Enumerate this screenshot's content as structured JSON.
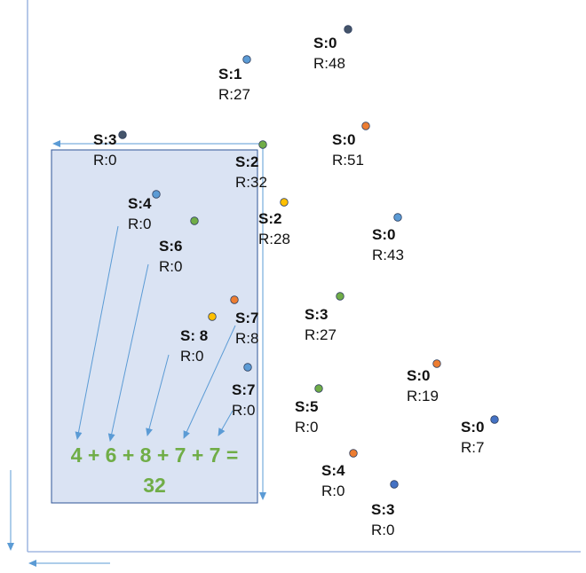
{
  "points": [
    {
      "s": "S:0",
      "r": "R:48",
      "color": "#44546a"
    },
    {
      "s": "S:1",
      "r": "R:27",
      "color": "#5b9bd5"
    },
    {
      "s": "S:3",
      "r": "R:0",
      "color": "#44546a"
    },
    {
      "s": "S:2",
      "r": "R:32",
      "color": "#70ad47"
    },
    {
      "s": "S:0",
      "r": "R:51",
      "color": "#ed7d31"
    },
    {
      "s": "S:4",
      "r": "R:0",
      "color": "#5b9bd5"
    },
    {
      "s": "S:2",
      "r": "R:28",
      "color": "#ffc000"
    },
    {
      "s": "S:6",
      "r": "R:0",
      "color": "#70ad47"
    },
    {
      "s": "S:0",
      "r": "R:43",
      "color": "#5b9bd5"
    },
    {
      "s": "S:3",
      "r": "R:27",
      "color": "#70ad47"
    },
    {
      "s": "S:7",
      "r": "R:8",
      "color": "#ed7d31"
    },
    {
      "s": "S: 8",
      "r": "R:0",
      "color": "#ffc000"
    },
    {
      "s": "S:7",
      "r": "R:0",
      "color": "#5b9bd5"
    },
    {
      "s": "S:0",
      "r": "R:19",
      "color": "#ed7d31"
    },
    {
      "s": "S:5",
      "r": "R:0",
      "color": "#70ad47"
    },
    {
      "s": "S:0",
      "r": "R:7",
      "color": "#4472c4"
    },
    {
      "s": "S:4",
      "r": "R:0",
      "color": "#ed7d31"
    },
    {
      "s": "S:3",
      "r": "R:0",
      "color": "#4472c4"
    }
  ],
  "sum": {
    "line1": "4 + 6 + 8 + 7 + 7 =",
    "line2": "32"
  },
  "colors": {
    "axis": "#8faadc",
    "box_fill": "#dae3f3",
    "box_stroke": "#2f5597",
    "arrow": "#5b9bd5",
    "sum_text": "#70ad47"
  }
}
